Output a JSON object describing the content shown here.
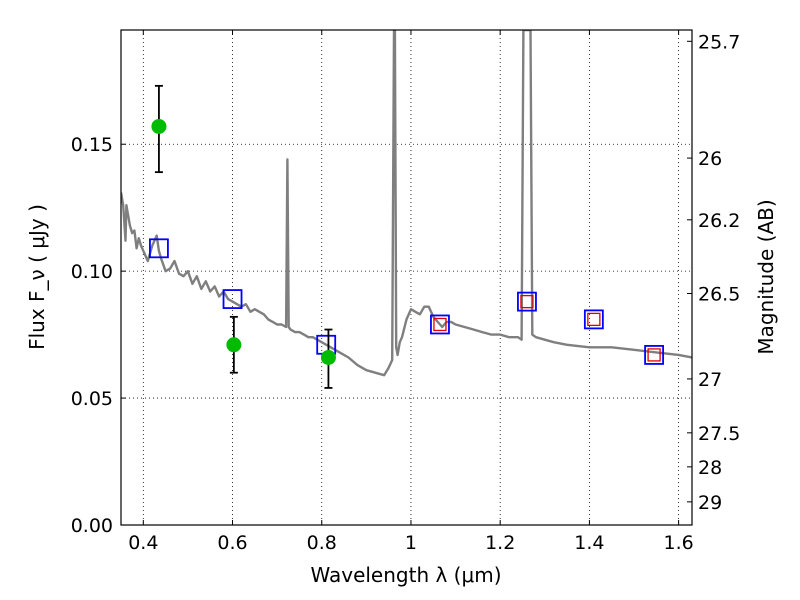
{
  "chart_data": {
    "type": "scatter",
    "title": "",
    "xlabel": "Wavelength  λ (μm)",
    "ylabel": "Flux  F_ν  ( μJy )",
    "ylabel_right": "Magnitude (AB)",
    "xlim": [
      0.35,
      1.63
    ],
    "ylim": [
      0.0,
      0.195
    ],
    "grid": true,
    "x_ticks": [
      0.4,
      0.6,
      0.8,
      1.0,
      1.2,
      1.4,
      1.6
    ],
    "x_tick_labels": [
      "0.4",
      "0.6",
      "0.8",
      "1",
      "1.2",
      "1.4",
      "1.6"
    ],
    "y_ticks": [
      0.0,
      0.05,
      0.1,
      0.15
    ],
    "y_tick_labels": [
      "0.00",
      "0.05",
      "0.10",
      "0.15"
    ],
    "y_right_ticks": [
      25.7,
      26.0,
      26.2,
      26.5,
      27.0,
      27.5,
      28.0,
      29.0
    ],
    "y_right_tick_labels": [
      "25.7",
      "26",
      "26.2",
      "26.5",
      "27",
      "27.5",
      "28",
      "29"
    ],
    "series": [
      {
        "kind": "model-spectrum",
        "color": "#7f7f7f",
        "x": [
          0.35,
          0.355,
          0.36,
          0.362,
          0.365,
          0.37,
          0.375,
          0.38,
          0.385,
          0.39,
          0.395,
          0.4,
          0.41,
          0.42,
          0.43,
          0.435,
          0.44,
          0.45,
          0.46,
          0.47,
          0.48,
          0.49,
          0.5,
          0.51,
          0.52,
          0.53,
          0.54,
          0.55,
          0.56,
          0.57,
          0.58,
          0.59,
          0.6,
          0.61,
          0.62,
          0.63,
          0.64,
          0.65,
          0.66,
          0.67,
          0.68,
          0.69,
          0.7,
          0.71,
          0.72,
          0.723,
          0.726,
          0.73,
          0.74,
          0.75,
          0.76,
          0.77,
          0.78,
          0.79,
          0.8,
          0.82,
          0.84,
          0.86,
          0.88,
          0.9,
          0.92,
          0.94,
          0.95,
          0.958,
          0.962,
          0.964,
          0.967,
          0.97,
          0.975,
          0.98,
          0.99,
          1.0,
          1.01,
          1.02,
          1.03,
          1.04,
          1.05,
          1.06,
          1.07,
          1.08,
          1.09,
          1.1,
          1.12,
          1.14,
          1.16,
          1.18,
          1.2,
          1.22,
          1.24,
          1.248,
          1.252,
          1.26,
          1.268,
          1.272,
          1.28,
          1.3,
          1.32,
          1.35,
          1.4,
          1.45,
          1.5,
          1.55,
          1.6,
          1.63
        ],
        "y": [
          0.131,
          0.126,
          0.112,
          0.126,
          0.123,
          0.118,
          0.115,
          0.116,
          0.109,
          0.113,
          0.11,
          0.108,
          0.104,
          0.11,
          0.114,
          0.108,
          0.105,
          0.1,
          0.101,
          0.104,
          0.099,
          0.098,
          0.1,
          0.095,
          0.098,
          0.093,
          0.096,
          0.092,
          0.094,
          0.09,
          0.092,
          0.089,
          0.088,
          0.087,
          0.086,
          0.087,
          0.084,
          0.085,
          0.084,
          0.083,
          0.081,
          0.08,
          0.079,
          0.079,
          0.078,
          0.144,
          0.078,
          0.077,
          0.076,
          0.076,
          0.075,
          0.074,
          0.074,
          0.073,
          0.072,
          0.07,
          0.068,
          0.066,
          0.063,
          0.061,
          0.06,
          0.059,
          0.062,
          0.065,
          0.195,
          0.195,
          0.07,
          0.067,
          0.072,
          0.074,
          0.081,
          0.085,
          0.084,
          0.083,
          0.086,
          0.086,
          0.082,
          0.08,
          0.078,
          0.08,
          0.08,
          0.079,
          0.078,
          0.077,
          0.076,
          0.075,
          0.075,
          0.074,
          0.074,
          0.073,
          0.195,
          0.195,
          0.195,
          0.075,
          0.074,
          0.073,
          0.072,
          0.071,
          0.07,
          0.07,
          0.069,
          0.068,
          0.067,
          0.066
        ]
      },
      {
        "kind": "measured-points",
        "color": "#00bb00",
        "x": [
          0.435,
          0.603,
          0.815
        ],
        "y": [
          0.157,
          0.071,
          0.066
        ],
        "yerr_low": [
          0.139,
          0.06,
          0.054
        ],
        "yerr_high": [
          0.173,
          0.082,
          0.077
        ]
      },
      {
        "kind": "model-squares",
        "color": "#0000ff",
        "x": [
          0.435,
          0.6,
          0.81,
          1.065,
          1.26,
          1.41,
          1.545
        ],
        "y": [
          0.109,
          0.089,
          0.071,
          0.079,
          0.088,
          0.081,
          0.067
        ]
      },
      {
        "kind": "small-squares",
        "color": "#dd0000",
        "x": [
          1.065,
          1.26,
          1.41,
          1.545
        ],
        "y": [
          0.079,
          0.088,
          0.081,
          0.067
        ]
      }
    ]
  }
}
